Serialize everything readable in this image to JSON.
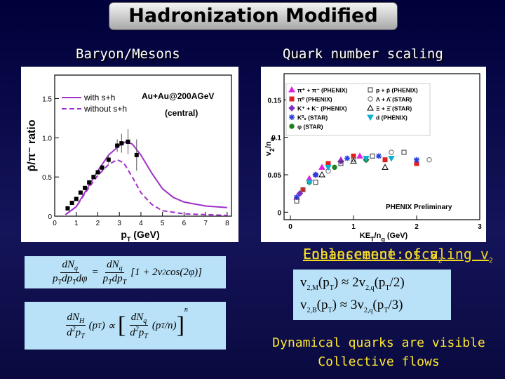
{
  "title": "Hadronization Modified",
  "left_heading": "Baryon/Mesons",
  "right_heading": "Quark number scaling",
  "left_plot": {
    "type": "line",
    "y_label": "p̄/π⁻ ratio",
    "x_label": [
      "p",
      "T",
      " (GeV)"
    ],
    "annotations": [
      "Au+Au@200AGeV",
      "(central)"
    ],
    "xlim": [
      0,
      8.2
    ],
    "ylim": [
      0,
      1.8
    ],
    "xticks": [
      0,
      1,
      2,
      3,
      4,
      5,
      6,
      7,
      8
    ],
    "yticks": [
      0,
      0.5,
      {
        "value": 1,
        "label": "1.0"
      },
      1.5
    ],
    "series": [
      {
        "name": "with s+h",
        "color": "#a030c8",
        "dashed": false,
        "x": [
          0.5,
          1,
          1.5,
          2,
          2.5,
          3,
          3.3,
          3.6,
          4,
          4.5,
          5,
          5.5,
          6,
          7,
          8
        ],
        "values": [
          0.02,
          0.12,
          0.35,
          0.58,
          0.78,
          0.9,
          0.95,
          0.92,
          0.78,
          0.55,
          0.35,
          0.24,
          0.18,
          0.13,
          0.11
        ]
      },
      {
        "name": "without s+h",
        "color": "#a030c8",
        "dashed": true,
        "x": [
          0.5,
          1,
          1.5,
          2,
          2.5,
          2.9,
          3.2,
          3.6,
          4,
          4.5,
          5,
          6,
          7,
          8
        ],
        "values": [
          0.02,
          0.12,
          0.33,
          0.52,
          0.66,
          0.72,
          0.68,
          0.5,
          0.3,
          0.15,
          0.07,
          0.03,
          0.02,
          0.01
        ]
      }
    ],
    "points": {
      "color": "#000000",
      "x": [
        0.6,
        0.8,
        1,
        1.2,
        1.4,
        1.6,
        1.8,
        2,
        2.2,
        2.5,
        2.9,
        3.1,
        3.4,
        3.8
      ],
      "values": [
        0.1,
        0.17,
        0.22,
        0.3,
        0.36,
        0.43,
        0.5,
        0.56,
        0.62,
        0.72,
        0.9,
        0.93,
        0.95,
        0.78
      ],
      "errors": [
        0.01,
        0.01,
        0.01,
        0.02,
        0.02,
        0.02,
        0.03,
        0.03,
        0.04,
        0.05,
        0.08,
        0.12,
        0.16,
        0.2
      ]
    }
  },
  "right_plot": {
    "type": "scatter",
    "y_label": [
      "v",
      "2",
      "/n",
      "q"
    ],
    "x_label": [
      "KE",
      "T",
      "/n",
      "q",
      " (GeV)"
    ],
    "annotation": "PHENIX Preliminary",
    "xlim": [
      -0.1,
      3.0
    ],
    "ylim": [
      -0.01,
      0.185
    ],
    "xticks": [
      0,
      1,
      2,
      3
    ],
    "yticks": [
      0,
      0.05,
      0.1,
      0.15
    ],
    "series": [
      {
        "name": "π⁺ + π⁻ (PHENIX)",
        "color": "#e020e0",
        "shape": "triangle",
        "x": [
          0.1,
          0.3,
          0.5,
          0.8,
          1.1
        ],
        "values": [
          0.02,
          0.045,
          0.06,
          0.07,
          0.075
        ]
      },
      {
        "name": "π⁰ (PHENIX)",
        "color": "#e02020",
        "shape": "square",
        "x": [
          0.2,
          0.6,
          1.0,
          1.5,
          2.0
        ],
        "values": [
          0.03,
          0.065,
          0.075,
          0.07,
          0.065
        ]
      },
      {
        "name": "K⁺ + K⁻ (PHENIX)",
        "color": "#8030c0",
        "shape": "diamond",
        "x": [
          0.15,
          0.4,
          0.8,
          1.2
        ],
        "values": [
          0.025,
          0.05,
          0.068,
          0.07
        ]
      },
      {
        "name": "K⁰ₛ (STAR)",
        "color": "#2040e0",
        "shape": "star",
        "x": [
          0.1,
          0.4,
          0.9,
          1.4,
          2.0
        ],
        "values": [
          0.02,
          0.05,
          0.072,
          0.075,
          0.07
        ]
      },
      {
        "name": "φ (STAR)",
        "color": "#208020",
        "shape": "circle",
        "x": [
          0.3,
          0.7,
          1.2
        ],
        "values": [
          0.04,
          0.06,
          0.07
        ]
      },
      {
        "name": "p + p̄ (PHENIX)",
        "color": "#333333",
        "shape": "square-open",
        "x": [
          0.1,
          0.4,
          0.8,
          1.3,
          1.8
        ],
        "values": [
          0.015,
          0.04,
          0.065,
          0.075,
          0.08
        ]
      },
      {
        "name": "Λ + Λ̄ (STAR)",
        "color": "#666666",
        "shape": "circle-open",
        "x": [
          0.2,
          0.6,
          1.0,
          1.6,
          2.2
        ],
        "values": [
          0.03,
          0.055,
          0.07,
          0.08,
          0.07
        ]
      },
      {
        "name": "Ξ + Ξ̄ (STAR)",
        "color": "#000000",
        "shape": "triangle-open",
        "x": [
          0.5,
          1.0,
          1.5
        ],
        "values": [
          0.05,
          0.068,
          0.06
        ]
      },
      {
        "name": "d (PHENIX)",
        "color": "#10b0d0",
        "shape": "triangle-down",
        "x": [
          0.3,
          0.6,
          1.2,
          1.6
        ],
        "values": [
          0.04,
          0.06,
          0.072,
          0.072
        ]
      }
    ]
  },
  "eq1": [
    "dN",
    "q",
    "p",
    "T",
    "dp",
    "T",
    "dφ",
    "=",
    "dN",
    "q",
    "p",
    "T",
    "dp",
    "T",
    "[1 + 2v",
    "2",
    " cos(2φ)]"
  ],
  "eq2": [
    "dN",
    "H",
    "d",
    "2",
    "p",
    "T",
    "(p",
    "T",
    ")",
    "∝",
    "[",
    "dN",
    "q",
    "d",
    "2",
    "p",
    "T",
    "(p",
    "T",
    "/n)",
    "]",
    "n"
  ],
  "eq3": [
    "v",
    "2,M",
    "(p",
    "T",
    ")",
    "≈ 2v",
    "2,q",
    "(p",
    "T",
    "/2)"
  ],
  "eq4": [
    "v",
    "2,B",
    "(p",
    "T",
    ")",
    "≈ 3v",
    "2,q",
    "(p",
    "T",
    "/3)"
  ],
  "overlay_a": [
    "Enhancement of v",
    "2"
  ],
  "overlay_b": [
    "Coalescence: scaling v",
    "2"
  ],
  "bottom": [
    "Dynamical quarks are visible",
    "Collective flows"
  ]
}
